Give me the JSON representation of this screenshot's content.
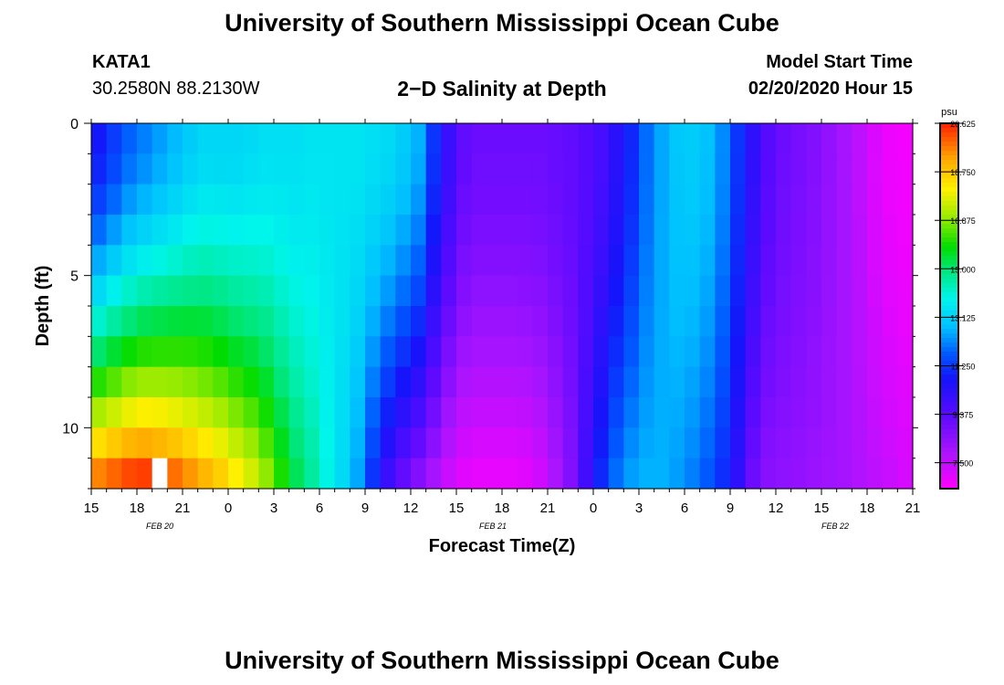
{
  "header": {
    "title": "University of Southern Mississippi Ocean Cube",
    "station": "KATA1",
    "coords": "30.2580N 88.2130W",
    "plot_title": "2−D Salinity at Depth",
    "start_label": "Model Start Time",
    "start_value": "02/20/2020 Hour 15"
  },
  "footer": {
    "title": "University of Southern Mississippi Ocean Cube"
  },
  "chart_data": {
    "type": "heatmap",
    "title": "2−D Salinity at Depth",
    "xlabel": "Forecast Time(Z)",
    "ylabel": "Depth (ft)",
    "x_ticks": [
      "15",
      "18",
      "21",
      "0",
      "3",
      "6",
      "9",
      "12",
      "15",
      "18",
      "21",
      "0",
      "3",
      "6",
      "9",
      "12",
      "15",
      "18",
      "21"
    ],
    "date_labels": [
      {
        "text": "FEB  20",
        "tick_index": 1.5
      },
      {
        "text": "FEB  21",
        "tick_index": 8.8
      },
      {
        "text": "FEB  22",
        "tick_index": 16.3
      }
    ],
    "x_range_hours": [
      0,
      54
    ],
    "y_ticks": [
      0,
      5,
      10
    ],
    "y_minor_step": 1,
    "ylim": [
      0,
      12
    ],
    "colorbar": {
      "unit": "psu",
      "min": 6.5,
      "max": 20.625,
      "labels": [
        "20.625",
        "18.750",
        "16.875",
        "15.000",
        "13.125",
        "11.250",
        "9.375",
        "7.500"
      ],
      "label_values": [
        20.625,
        18.75,
        16.875,
        15.0,
        13.125,
        11.25,
        9.375,
        7.5
      ]
    },
    "grid_layout": {
      "columns": 54,
      "rows": 12,
      "note": "columns = hours from Feb 20 15Z; rows = 1-ft depth bands"
    },
    "salinity_profile": {
      "surface_by_hour": [
        10.8,
        11.3,
        11.8,
        12.1,
        12.4,
        12.7,
        13.0,
        13.2,
        13.2,
        13.2,
        13.3,
        13.4,
        13.4,
        13.4,
        13.5,
        13.5,
        13.5,
        13.5,
        13.4,
        13.3,
        13.0,
        12.6,
        11.2,
        10.0,
        9.2,
        9.0,
        9.0,
        9.0,
        9.0,
        9.0,
        9.1,
        9.2,
        9.4,
        9.7,
        10.3,
        11.0,
        11.9,
        12.5,
        12.9,
        13.0,
        12.8,
        12.2,
        11.2,
        10.2,
        9.4,
        9.0,
        8.8,
        8.6,
        8.3,
        8.0,
        7.6,
        7.1,
        6.8,
        6.7
      ],
      "bottom_by_hour": [
        19.6,
        19.9,
        20.2,
        20.3,
        20.1,
        19.8,
        19.4,
        19.0,
        18.6,
        18.1,
        17.6,
        16.9,
        16.0,
        15.2,
        14.6,
        13.9,
        13.3,
        12.5,
        11.2,
        10.0,
        9.2,
        8.6,
        8.0,
        7.4,
        7.0,
        6.9,
        6.9,
        6.9,
        7.0,
        7.3,
        7.9,
        8.6,
        9.8,
        11.0,
        11.9,
        12.4,
        12.6,
        12.6,
        12.4,
        12.1,
        11.7,
        11.1,
        10.2,
        9.0,
        8.5,
        8.4,
        8.3,
        8.2,
        8.1,
        8.0,
        7.8,
        7.6,
        7.4,
        7.2
      ],
      "depth_exponent": 1.6
    },
    "missing_cells": [
      {
        "hour": 4,
        "depth_band": 11
      }
    ]
  }
}
